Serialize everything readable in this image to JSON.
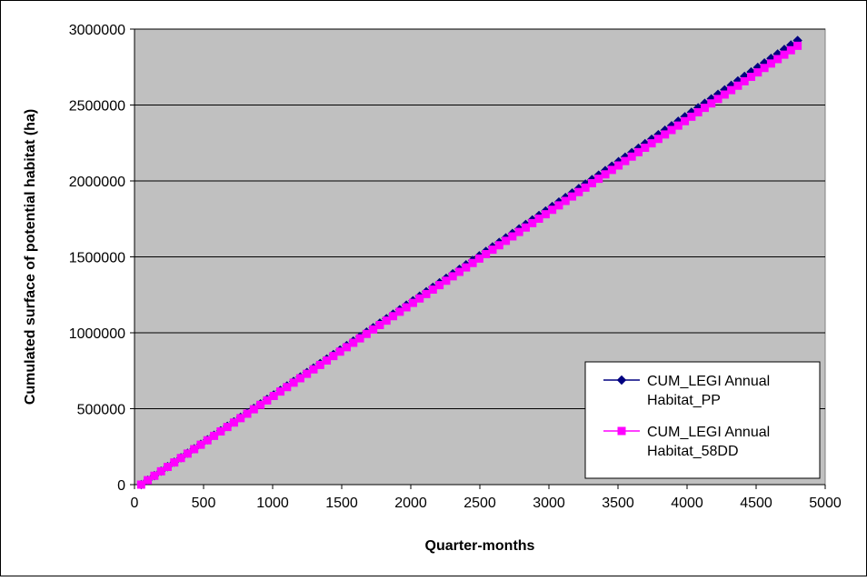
{
  "chart_data": {
    "type": "line",
    "title": "",
    "xlabel": "Quarter-months",
    "ylabel": "Cumulated surface of potential habitat (ha)",
    "xlim": [
      0,
      5000
    ],
    "ylim": [
      0,
      3000000
    ],
    "x_ticks": [
      0,
      500,
      1000,
      1500,
      2000,
      2500,
      3000,
      3500,
      4000,
      4500,
      5000
    ],
    "y_ticks": [
      0,
      500000,
      1000000,
      1500000,
      2000000,
      2500000,
      3000000
    ],
    "grid": "horizontal",
    "plot_background": "#c0c0c0",
    "legend_position": "bottom-right",
    "series": [
      {
        "name": "CUM_LEGI Annual Habitat_PP",
        "legend_lines": [
          "CUM_LEGI Annual",
          "Habitat_PP"
        ],
        "color": "#000080",
        "marker": "diamond",
        "x_start": 48,
        "x_step": 48,
        "count": 100,
        "y_end": 2925000
      },
      {
        "name": "CUM_LEGI Annual Habitat_58DD",
        "legend_lines": [
          "CUM_LEGI Annual",
          "Habitat_58DD"
        ],
        "color": "#ff00ff",
        "marker": "square",
        "x_start": 48,
        "x_step": 48,
        "count": 100,
        "y_end": 2890000
      }
    ]
  }
}
